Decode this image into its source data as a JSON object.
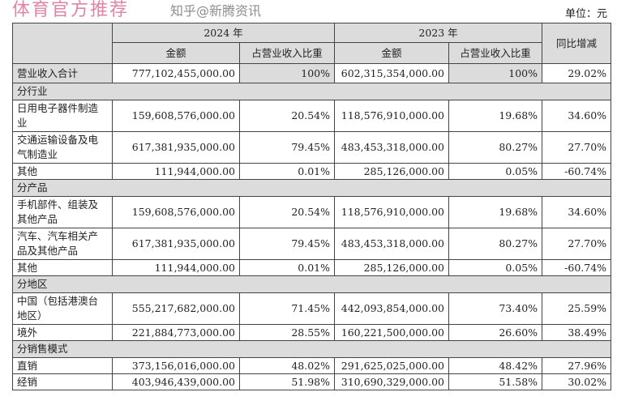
{
  "unit": "单位：元",
  "header": {
    "year_2024": "2024 年",
    "year_2023": "2023 年",
    "amount": "金额",
    "ratio": "占营业收入比重",
    "yoy": "同比增减"
  },
  "total": {
    "label": "营业收入合计",
    "a2024": "777,102,455,000.00",
    "p2024": "100%",
    "a2023": "602,315,354,000.00",
    "p2023": "100%",
    "yoy": "29.02%"
  },
  "sections": [
    {
      "title": "分行业",
      "rows": [
        {
          "label": "日用电子器件制造业",
          "a2024": "159,608,576,000.00",
          "p2024": "20.54%",
          "a2023": "118,576,910,000.00",
          "p2023": "19.68%",
          "yoy": "34.60%"
        },
        {
          "label": "交通运输设备及电气制造业",
          "a2024": "617,381,935,000.00",
          "p2024": "79.45%",
          "a2023": "483,453,318,000.00",
          "p2023": "80.27%",
          "yoy": "27.70%"
        },
        {
          "label": "其他",
          "a2024": "111,944,000.00",
          "p2024": "0.01%",
          "a2023": "285,126,000.00",
          "p2023": "0.05%",
          "yoy": "-60.74%"
        }
      ]
    },
    {
      "title": "分产品",
      "rows": [
        {
          "label": "手机部件、组装及其他产品",
          "a2024": "159,608,576,000.00",
          "p2024": "20.54%",
          "a2023": "118,576,910,000.00",
          "p2023": "19.68%",
          "yoy": "34.60%"
        },
        {
          "label": "汽车、汽车相关产品及其他产品",
          "a2024": "617,381,935,000.00",
          "p2024": "79.45%",
          "a2023": "483,453,318,000.00",
          "p2023": "80.27%",
          "yoy": "27.70%"
        },
        {
          "label": "其他",
          "a2024": "111,944,000.00",
          "p2024": "0.01%",
          "a2023": "285,126,000.00",
          "p2023": "0.05%",
          "yoy": "-60.74%"
        }
      ]
    },
    {
      "title": "分地区",
      "rows": [
        {
          "label": "中国（包括港澳台地区）",
          "a2024": "555,217,682,000.00",
          "p2024": "71.45%",
          "a2023": "442,093,854,000.00",
          "p2023": "73.40%",
          "yoy": "25.59%"
        },
        {
          "label": "境外",
          "a2024": "221,884,773,000.00",
          "p2024": "28.55%",
          "a2023": "160,221,500,000.00",
          "p2023": "26.60%",
          "yoy": "38.49%"
        }
      ]
    },
    {
      "title": "分销售模式",
      "rows": [
        {
          "label": "直销",
          "a2024": "373,156,016,000.00",
          "p2024": "48.02%",
          "a2023": "291,625,025,000.00",
          "p2023": "48.42%",
          "yoy": "27.96%"
        },
        {
          "label": "经销",
          "a2024": "403,946,439,000.00",
          "p2024": "51.98%",
          "a2023": "310,690,329,000.00",
          "p2023": "51.58%",
          "yoy": "30.02%"
        }
      ]
    }
  ],
  "watermark": "体育官方推荐",
  "watermark2": "知乎@新腾资讯"
}
